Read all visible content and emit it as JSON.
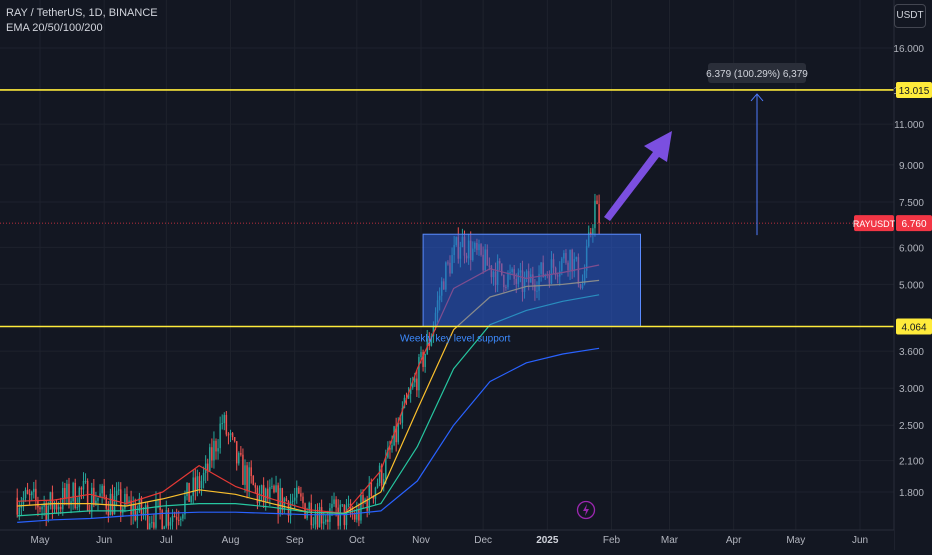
{
  "header": {
    "symbol_line": "RAY / TetherUS, 1D, BINANCE",
    "indicator_line": "EMA 20/50/100/200"
  },
  "currency_button": "USDT",
  "colors": {
    "background": "#131722",
    "grid": "#1e222d",
    "text": "#b2b5be",
    "up": "#26a69a",
    "down": "#ef5350",
    "level_line": "#ffeb3b",
    "box_fill": "#2b5fd9",
    "box_stroke": "#5b8cff",
    "projection": "#4f7bff",
    "arrow": "#7b4fe0",
    "ema20": "#e53935",
    "ema50": "#fbc02d",
    "ema100": "#26c6a0",
    "ema200": "#2962ff",
    "current_price": "#f23645"
  },
  "chart_data": {
    "type": "candlestick",
    "y_scale": "log",
    "y_ticks": [
      "16.000",
      "13.015",
      "11.000",
      "9.000",
      "7.500",
      "6.000",
      "5.000",
      "4.064",
      "3.600",
      "3.000",
      "2.500",
      "2.100",
      "1.800"
    ],
    "x_ticks": [
      "May",
      "Jun",
      "Jul",
      "Aug",
      "Sep",
      "Oct",
      "Nov",
      "Dec",
      "2025",
      "Feb",
      "Mar",
      "Apr",
      "May",
      "Jun"
    ],
    "levels": [
      {
        "value": 13.015,
        "label": "13.015"
      },
      {
        "value": 4.064,
        "label": "4.064"
      }
    ],
    "current_price": {
      "symbol": "RAYUSDT",
      "value": 6.76,
      "label": "6.760"
    },
    "range_box": {
      "start": "2024-11-02",
      "end": "2025-02-15",
      "low": 4.064,
      "high": 6.4
    },
    "annotations": {
      "support_label": "Weekly key level support",
      "projection_label": "6.379 (100.29%) 6,379"
    },
    "candles_close_path": [
      {
        "date": "2024-04-20",
        "close": 1.75
      },
      {
        "date": "2024-05-05",
        "close": 1.68
      },
      {
        "date": "2024-05-20",
        "close": 1.8
      },
      {
        "date": "2024-06-05",
        "close": 1.72
      },
      {
        "date": "2024-06-20",
        "close": 1.62
      },
      {
        "date": "2024-07-05",
        "close": 1.62
      },
      {
        "date": "2024-07-20",
        "close": 1.95
      },
      {
        "date": "2024-07-28",
        "close": 2.55
      },
      {
        "date": "2024-08-05",
        "close": 2.05
      },
      {
        "date": "2024-08-15",
        "close": 1.75
      },
      {
        "date": "2024-09-01",
        "close": 1.72
      },
      {
        "date": "2024-09-15",
        "close": 1.62
      },
      {
        "date": "2024-10-01",
        "close": 1.6
      },
      {
        "date": "2024-10-15",
        "close": 2.05
      },
      {
        "date": "2024-10-28",
        "close": 3.0
      },
      {
        "date": "2024-11-05",
        "close": 3.8
      },
      {
        "date": "2024-11-12",
        "close": 5.2
      },
      {
        "date": "2024-11-20",
        "close": 6.2
      },
      {
        "date": "2024-12-05",
        "close": 5.4
      },
      {
        "date": "2024-12-20",
        "close": 5.0
      },
      {
        "date": "2025-01-01",
        "close": 5.35
      },
      {
        "date": "2025-01-12",
        "close": 5.8
      },
      {
        "date": "2025-01-18",
        "close": 5.0
      },
      {
        "date": "2025-01-24",
        "close": 7.4
      },
      {
        "date": "2025-01-26",
        "close": 6.76
      }
    ],
    "emas": [
      {
        "name": "EMA 20",
        "values": [
          1.72,
          1.73,
          1.78,
          1.7,
          1.8,
          2.05,
          1.85,
          1.74,
          1.65,
          1.62,
          2.0,
          3.3,
          4.9,
          5.4,
          5.15,
          5.3,
          5.5
        ]
      },
      {
        "name": "EMA 50",
        "values": [
          1.68,
          1.7,
          1.7,
          1.68,
          1.74,
          1.82,
          1.78,
          1.7,
          1.63,
          1.62,
          1.8,
          2.7,
          4.0,
          4.7,
          4.95,
          5.0,
          5.1
        ]
      },
      {
        "name": "EMA 100",
        "values": [
          1.6,
          1.62,
          1.64,
          1.64,
          1.68,
          1.7,
          1.7,
          1.67,
          1.63,
          1.62,
          1.7,
          2.25,
          3.3,
          4.1,
          4.4,
          4.6,
          4.75
        ]
      },
      {
        "name": "EMA 200",
        "values": [
          1.55,
          1.57,
          1.58,
          1.6,
          1.62,
          1.63,
          1.63,
          1.62,
          1.61,
          1.61,
          1.64,
          1.9,
          2.5,
          3.1,
          3.4,
          3.55,
          3.65
        ]
      }
    ]
  }
}
